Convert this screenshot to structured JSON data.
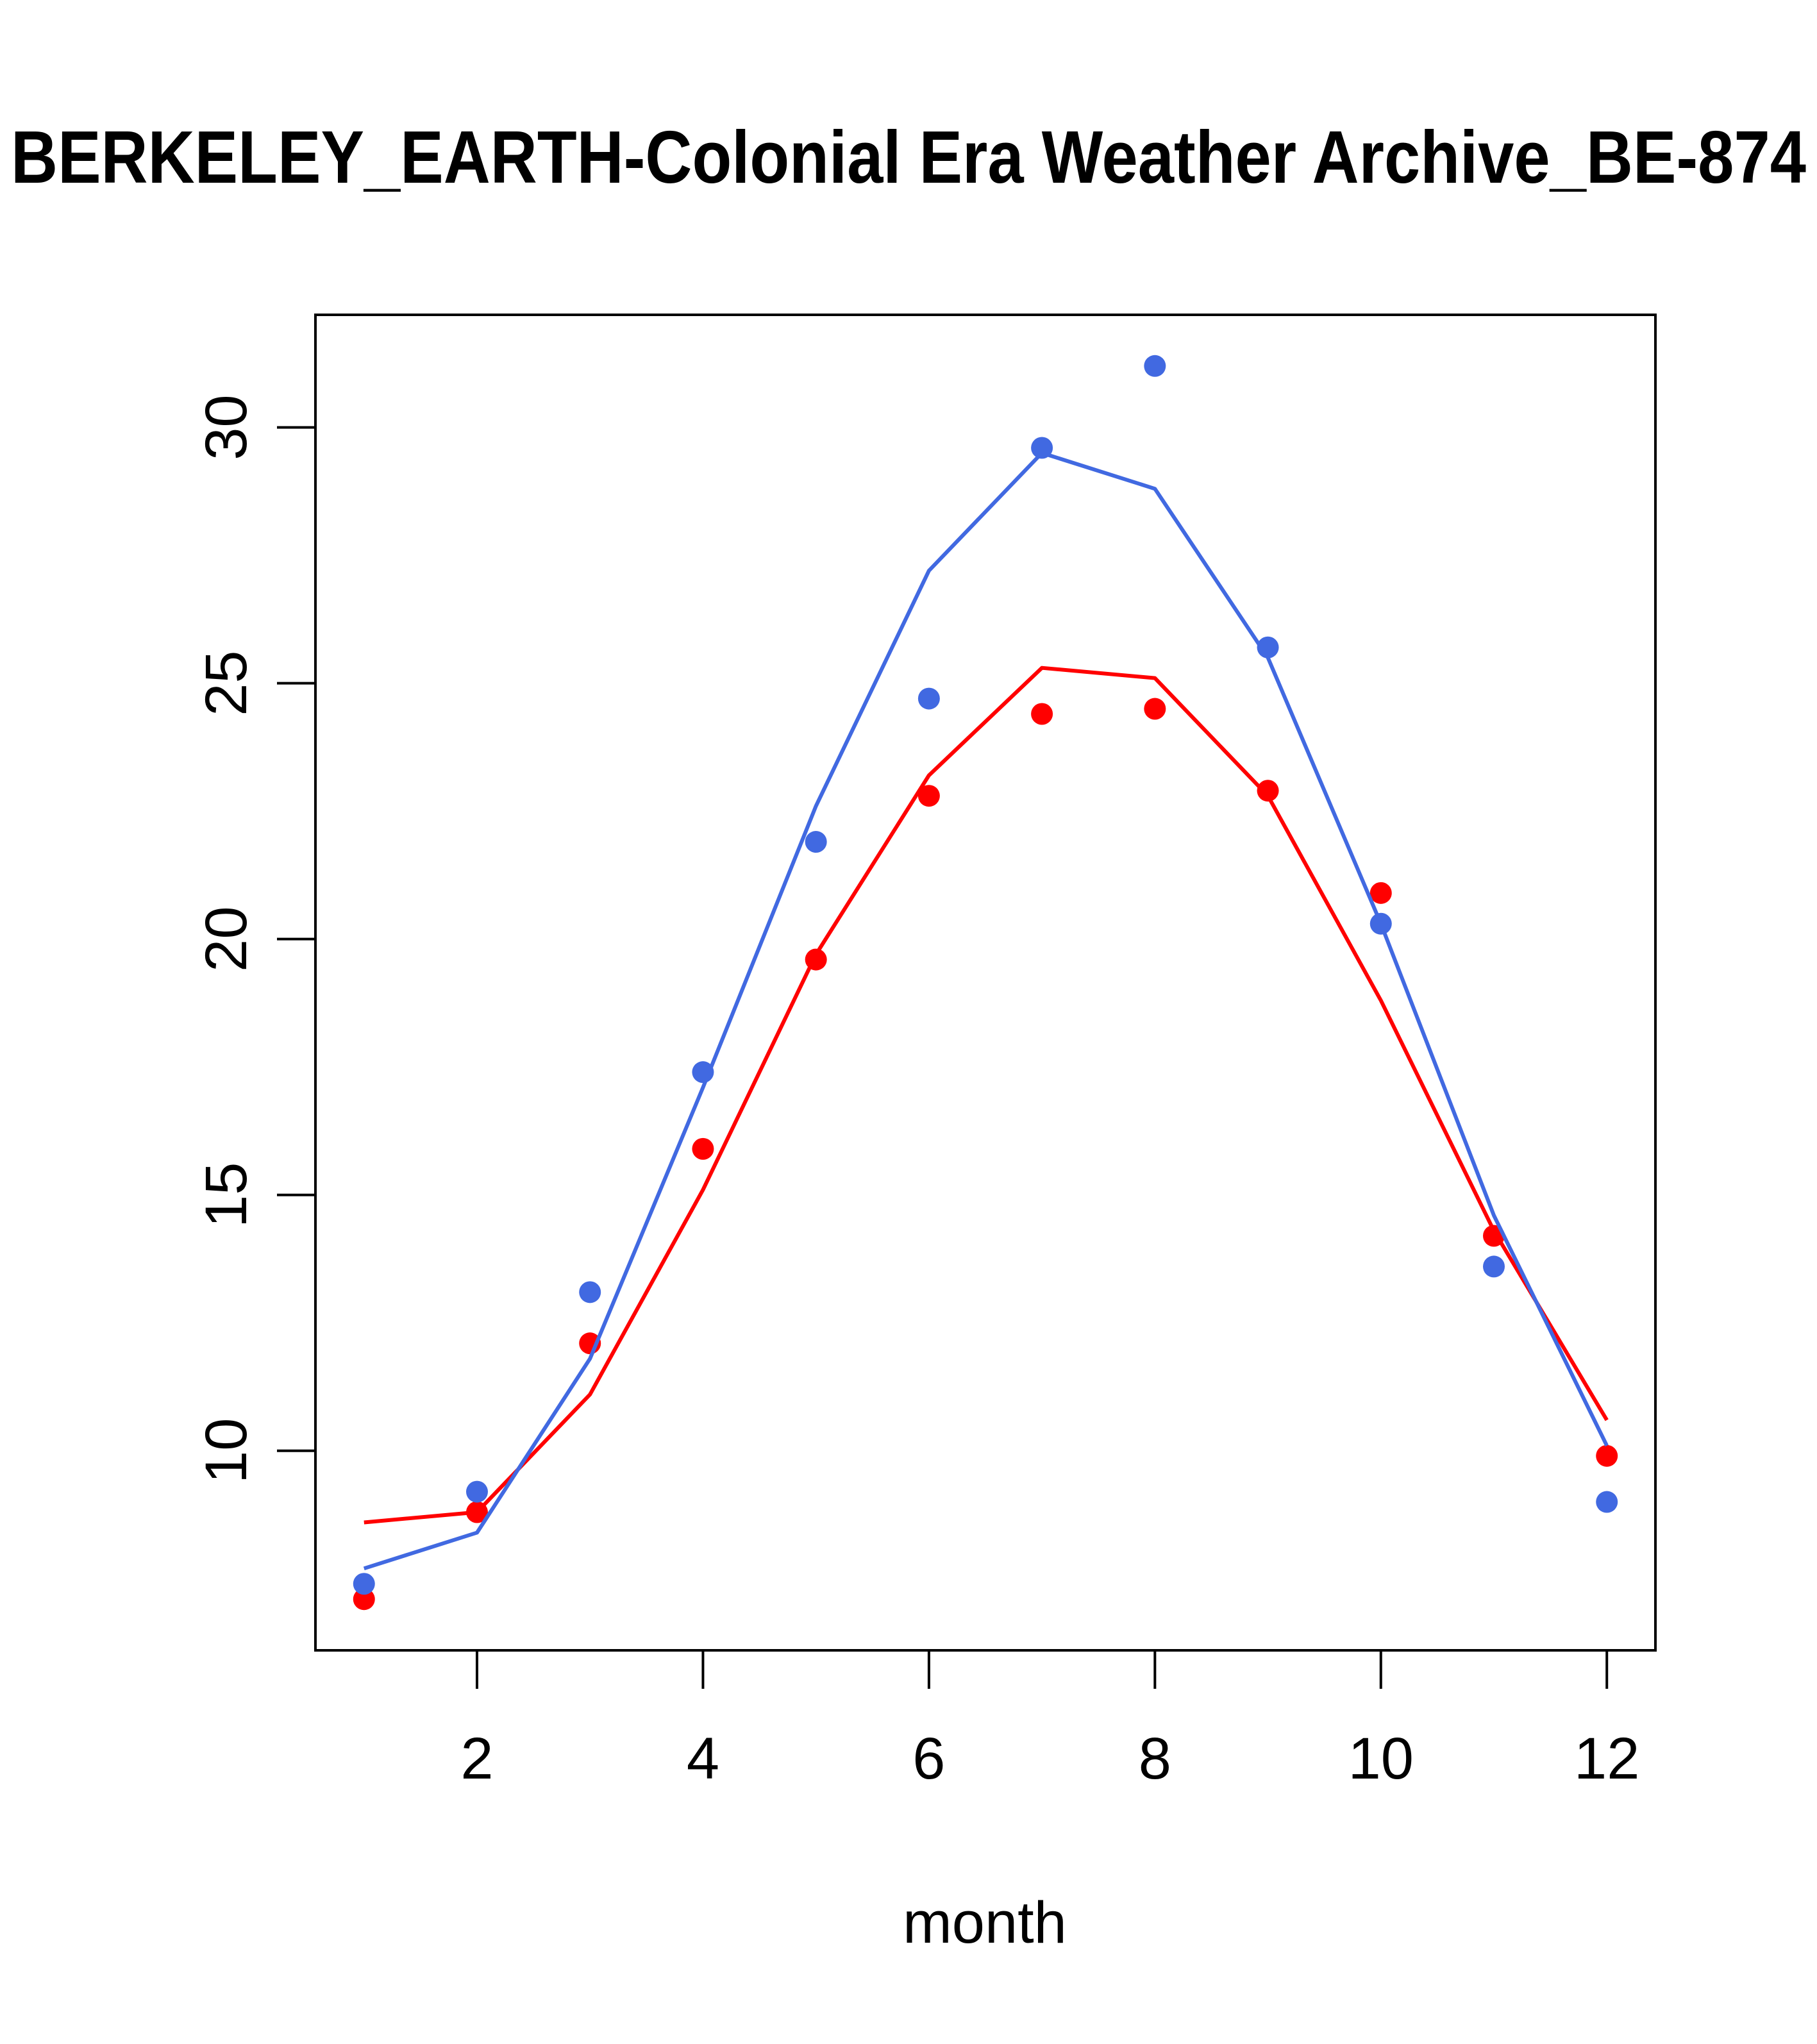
{
  "chart_data": {
    "type": "scatter",
    "title": "BERKELEY_EARTH-Colonial Era Weather Archive_BE-874",
    "xlabel": "month",
    "ylabel": "",
    "xlim": [
      0.57,
      12.43
    ],
    "ylim": [
      6.1,
      32.2
    ],
    "x_ticks": [
      2,
      4,
      6,
      8,
      10,
      12
    ],
    "y_ticks": [
      10,
      15,
      20,
      25,
      30
    ],
    "grid": false,
    "legend": "none",
    "x": [
      1,
      2,
      3,
      4,
      5,
      6,
      7,
      8,
      9,
      10,
      11,
      12
    ],
    "series": [
      {
        "color": "#ff0000",
        "points": [
          7.1,
          8.8,
          12.1,
          15.9,
          19.6,
          22.8,
          24.4,
          24.5,
          22.9,
          20.9,
          14.2,
          9.9
        ],
        "fit": [
          8.6,
          8.8,
          11.1,
          15.1,
          19.7,
          23.2,
          25.3,
          25.1,
          22.8,
          18.8,
          14.3,
          10.6
        ]
      },
      {
        "color": "#4169e1",
        "points": [
          7.4,
          9.2,
          13.1,
          17.4,
          21.9,
          24.7,
          29.6,
          31.2,
          25.7,
          20.3,
          13.6,
          9.0
        ],
        "fit": [
          7.7,
          8.4,
          11.8,
          17.1,
          22.6,
          27.2,
          29.5,
          28.8,
          25.5,
          20.3,
          14.6,
          10.1
        ]
      }
    ]
  }
}
